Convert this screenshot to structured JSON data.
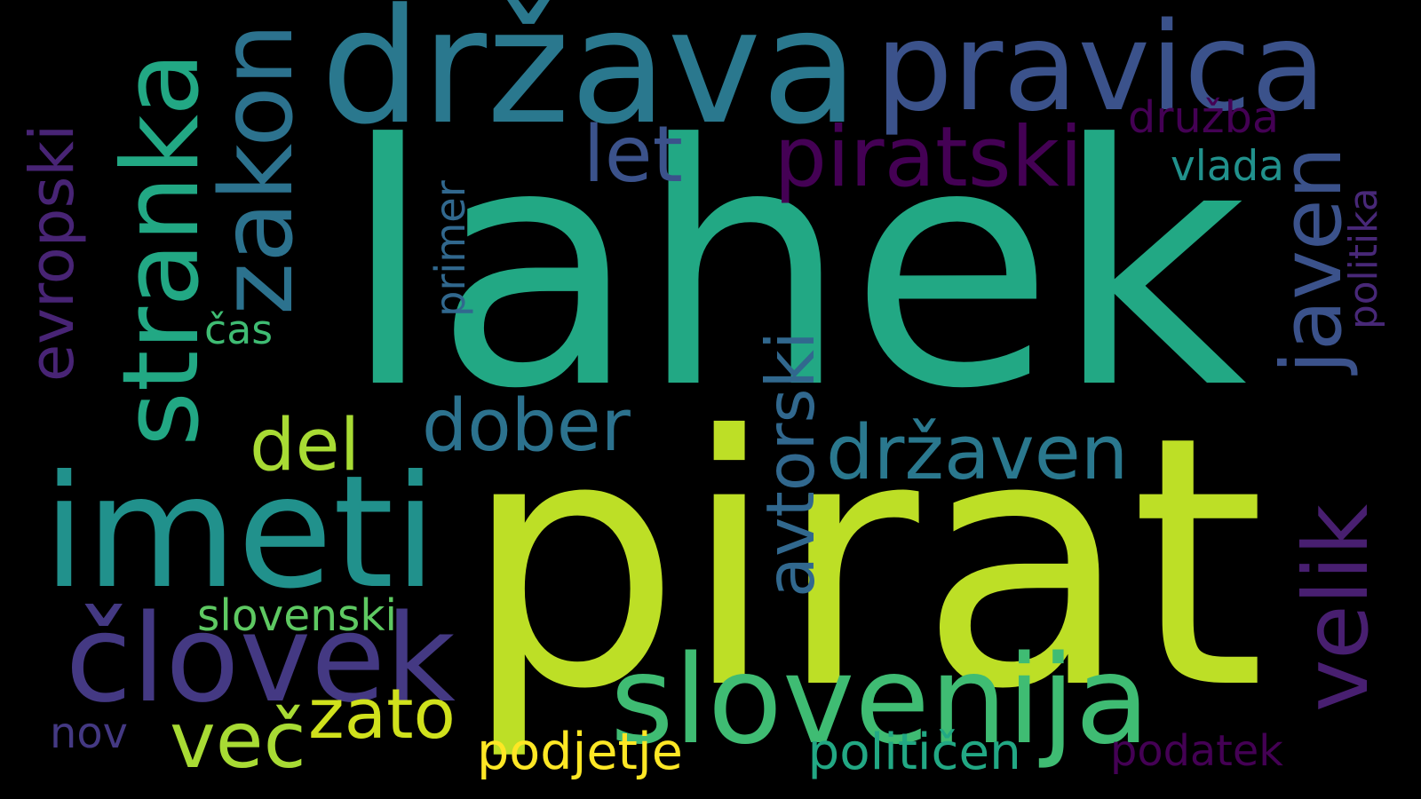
{
  "background": "#000000",
  "palette": {
    "viridis_yellow_green": "#bddf26",
    "viridis_teal_green": "#22a884",
    "viridis_teal": "#2a788e",
    "viridis_blue_teal": "#2c728e",
    "viridis_blue": "#3b528b",
    "viridis_indigo": "#443983",
    "viridis_purple": "#481f70",
    "viridis_green": "#3fbc73",
    "viridis_light_green": "#a8db34",
    "viridis_yellow": "#e5e419",
    "viridis_deep_purple": "#440154"
  },
  "words": [
    {
      "id": "lahek",
      "text": "lahek",
      "color": "#22a884"
    },
    {
      "id": "pirat",
      "text": "pirat",
      "color": "#bddf26"
    },
    {
      "id": "drzava",
      "text": "država",
      "color": "#2a788e"
    },
    {
      "id": "pravica",
      "text": "pravica",
      "color": "#3b528b"
    },
    {
      "id": "imeti",
      "text": "imeti",
      "color": "#21918c"
    },
    {
      "id": "stranka",
      "text": "stranka",
      "color": "#22a884"
    },
    {
      "id": "zakon",
      "text": "zakon",
      "color": "#2c728e"
    },
    {
      "id": "clovek",
      "text": "človek",
      "color": "#443983"
    },
    {
      "id": "slovenija",
      "text": "slovenija",
      "color": "#3fbc73"
    },
    {
      "id": "velik",
      "text": "velik",
      "color": "#481f70"
    },
    {
      "id": "javen",
      "text": "javen",
      "color": "#3b528b"
    },
    {
      "id": "piratski",
      "text": "piratski",
      "color": "#440154"
    },
    {
      "id": "evropski",
      "text": "evropski",
      "color": "#482475"
    },
    {
      "id": "let",
      "text": "let",
      "color": "#3b528b"
    },
    {
      "id": "drzaven",
      "text": "državen",
      "color": "#2a788e"
    },
    {
      "id": "dober",
      "text": "dober",
      "color": "#2c728e"
    },
    {
      "id": "avtorski",
      "text": "avtorski",
      "color": "#31688e"
    },
    {
      "id": "del",
      "text": "del",
      "color": "#a8db34"
    },
    {
      "id": "vec",
      "text": "več",
      "color": "#a8db34"
    },
    {
      "id": "zato",
      "text": "zato",
      "color": "#d0e11c"
    },
    {
      "id": "slovenski",
      "text": "slovenski",
      "color": "#5ec962"
    },
    {
      "id": "podjetje",
      "text": "podjetje",
      "color": "#fde725"
    },
    {
      "id": "politicen",
      "text": "političen",
      "color": "#22a884"
    },
    {
      "id": "podatek",
      "text": "podatek",
      "color": "#440154"
    },
    {
      "id": "nov",
      "text": "nov",
      "color": "#443983"
    },
    {
      "id": "druzba",
      "text": "družba",
      "color": "#440154"
    },
    {
      "id": "vlada",
      "text": "vlada",
      "color": "#21918c"
    },
    {
      "id": "primer",
      "text": "primer",
      "color": "#31688e"
    },
    {
      "id": "cas",
      "text": "čas",
      "color": "#3fbc73"
    },
    {
      "id": "politika",
      "text": "politika",
      "color": "#482878"
    }
  ]
}
